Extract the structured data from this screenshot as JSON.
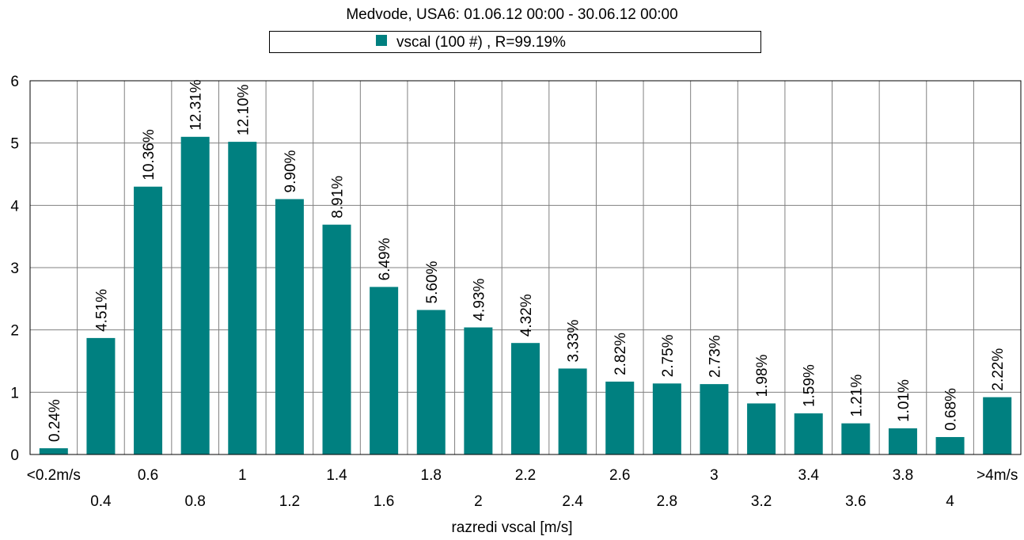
{
  "chart_data": {
    "type": "bar",
    "title": "Medvode, USA6: 01.06.12 00:00 - 30.06.12 00:00",
    "xlabel": "razredi vscal [m/s]",
    "ylabel": "",
    "ylim": [
      0,
      6
    ],
    "yticks": [
      "0",
      "1",
      "2",
      "3",
      "4",
      "5",
      "6"
    ],
    "grid": true,
    "legend_position": "top-center",
    "bar_color": "#008080",
    "categories": [
      "<0.2m/s",
      "0.4",
      "0.6",
      "0.8",
      "1",
      "1.2",
      "1.4",
      "1.6",
      "1.8",
      "2",
      "2.2",
      "2.4",
      "2.6",
      "2.8",
      "3",
      "3.2",
      "3.4",
      "3.6",
      "3.8",
      "4",
      ">4m/s"
    ],
    "series": [
      {
        "name": "vscal (100 #) , R=99.19%",
        "values": [
          0.1,
          1.87,
          4.3,
          5.1,
          5.02,
          4.1,
          3.69,
          2.69,
          2.32,
          2.04,
          1.79,
          1.38,
          1.17,
          1.14,
          1.13,
          0.82,
          0.66,
          0.5,
          0.42,
          0.28,
          0.92
        ],
        "labels": [
          "0.24%",
          "4.51%",
          "10.36%",
          "12.31%",
          "12.10%",
          "9.90%",
          "8.91%",
          "6.49%",
          "5.60%",
          "4.93%",
          "4.32%",
          "3.33%",
          "2.82%",
          "2.75%",
          "2.73%",
          "1.98%",
          "1.59%",
          "1.21%",
          "1.01%",
          "0.68%",
          "2.22%"
        ]
      }
    ]
  }
}
